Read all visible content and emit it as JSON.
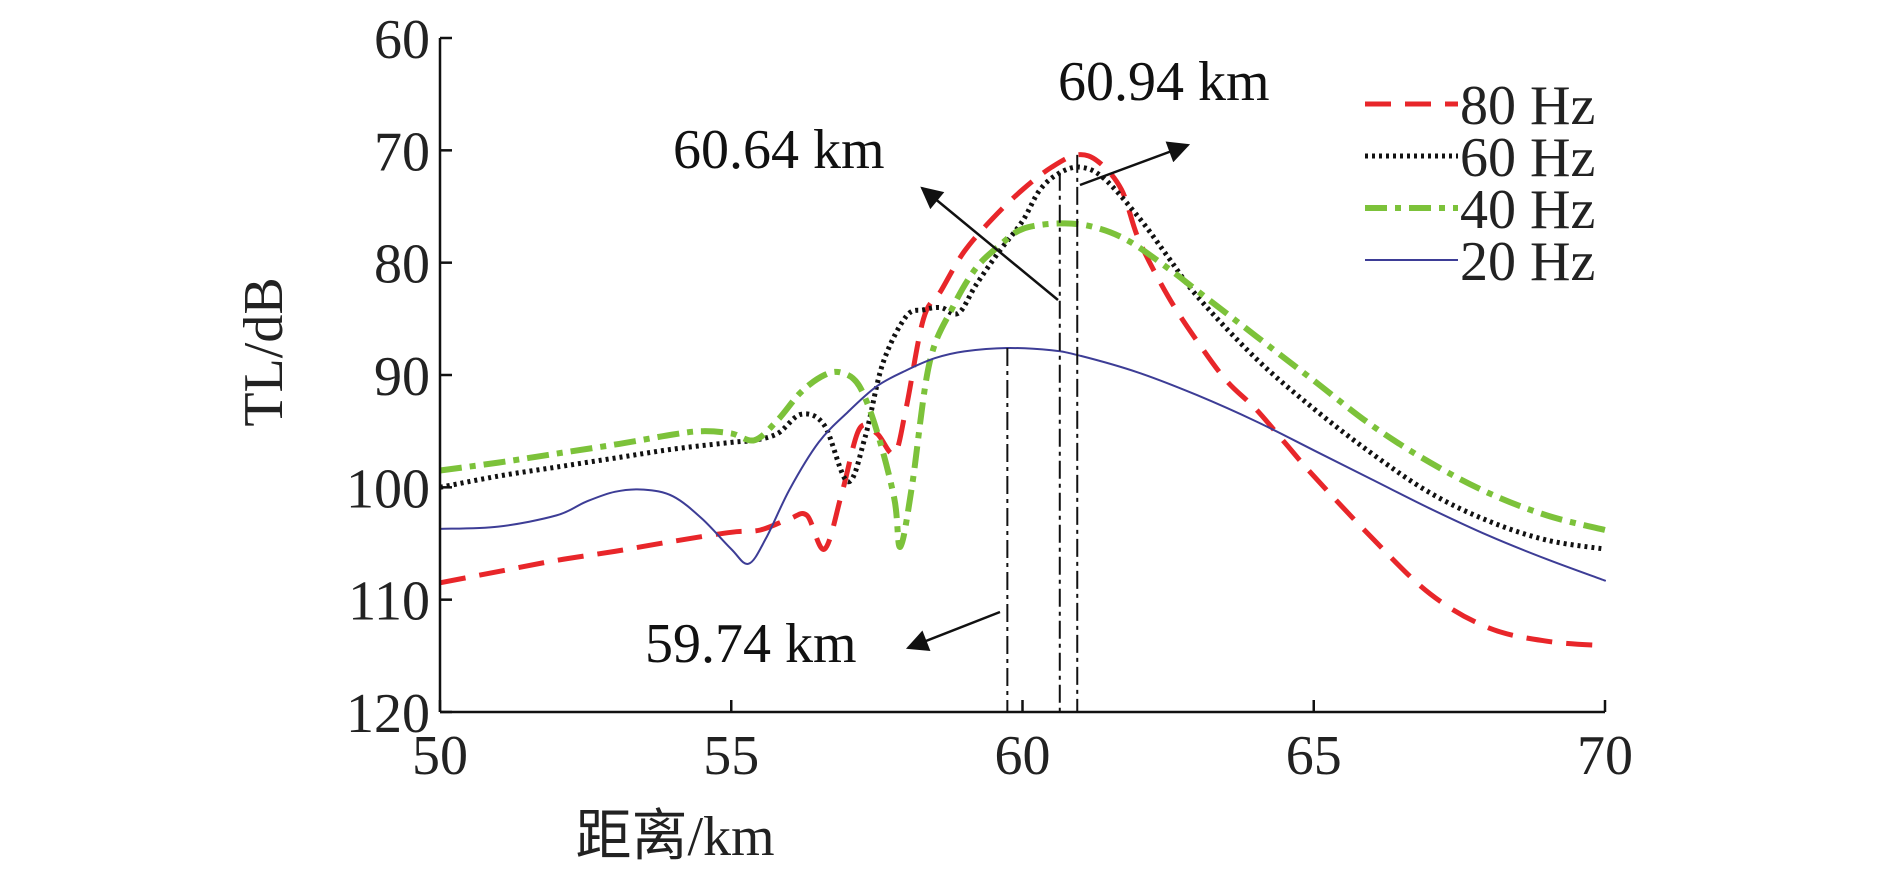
{
  "chart_data": {
    "type": "line",
    "xlabel": "距离/km",
    "ylabel": "TL/dB",
    "xlim": [
      50,
      70
    ],
    "ylim": [
      60,
      120
    ],
    "y_inverted": true,
    "x_ticks": [
      "50",
      "55",
      "60",
      "65",
      "70"
    ],
    "y_ticks": [
      "60",
      "70",
      "80",
      "90",
      "100",
      "110",
      "120"
    ],
    "legend_position": "top-right",
    "series": [
      {
        "name": "80 Hz",
        "color": "#e8262a",
        "style": "dashed",
        "x": [
          50,
          51,
          52,
          53,
          54,
          55,
          55.5,
          56,
          56.3,
          56.6,
          56.9,
          57.2,
          57.5,
          57.8,
          58,
          58.3,
          58.6,
          59,
          59.5,
          60,
          60.5,
          60.94,
          61.3,
          61.7,
          62,
          62.5,
          63,
          63.5,
          64,
          64.5,
          65,
          66,
          67,
          68,
          69,
          70
        ],
        "y": [
          108.5,
          107.5,
          106.5,
          105.7,
          104.8,
          104,
          103.8,
          102.8,
          102.5,
          105.5,
          100.5,
          94.8,
          95.2,
          97,
          93,
          85,
          82.5,
          79,
          76,
          73.5,
          71.5,
          70.4,
          71,
          73.5,
          78,
          83,
          87,
          90.5,
          93,
          96,
          99,
          104.5,
          109.5,
          112.5,
          113.7,
          114.1
        ]
      },
      {
        "name": "60 Hz",
        "color": "#111111",
        "style": "dotted",
        "x": [
          50,
          51,
          52,
          53,
          54,
          55,
          55.4,
          55.8,
          56.2,
          56.6,
          57,
          57.3,
          57.6,
          58,
          58.3,
          58.6,
          58.9,
          59.2,
          59.6,
          60,
          60.3,
          60.64,
          61,
          61.4,
          62,
          62.5,
          63,
          64,
          65,
          66,
          67,
          68,
          69,
          70
        ],
        "y": [
          100,
          99,
          98.2,
          97.4,
          96.6,
          96,
          95.8,
          95.2,
          93.5,
          94.5,
          99.5,
          95.5,
          89,
          84.8,
          84.2,
          84,
          84.5,
          82,
          79,
          76.3,
          73.5,
          72,
          71.5,
          72.5,
          76,
          79.5,
          83,
          88.5,
          93,
          97,
          100.5,
          103,
          104.7,
          105.5
        ]
      },
      {
        "name": "40 Hz",
        "color": "#7cc23a",
        "style": "dashdot",
        "x": [
          50,
          51,
          52,
          53,
          54,
          54.5,
          55,
          55.4,
          55.8,
          56.2,
          56.6,
          56.9,
          57.2,
          57.5,
          57.8,
          57.9,
          58.1,
          58.4,
          58.8,
          59.2,
          59.6,
          60,
          60.64,
          61.2,
          61.8,
          62.5,
          63,
          64,
          65,
          66,
          67,
          68,
          69,
          70
        ],
        "y": [
          98.5,
          97.8,
          97,
          96.2,
          95.3,
          95,
          95.2,
          95.8,
          94,
          91.5,
          90,
          89.8,
          91,
          95,
          101,
          105.3,
          100,
          89,
          84,
          80.5,
          78.5,
          77,
          76.5,
          76.8,
          78,
          80.5,
          82.5,
          86.5,
          90.5,
          94.5,
          97.8,
          100.5,
          102.5,
          103.8
        ]
      },
      {
        "name": "20 Hz",
        "color": "#3d3d96",
        "style": "solid",
        "x": [
          50,
          51,
          52,
          52.5,
          53,
          53.5,
          54,
          54.5,
          55,
          55.3,
          55.6,
          56,
          56.5,
          57,
          57.5,
          58,
          58.5,
          59,
          59.74,
          60.5,
          61,
          62,
          63,
          64,
          65,
          66,
          67,
          68,
          69,
          70
        ],
        "y": [
          103.7,
          103.5,
          102.5,
          101.3,
          100.4,
          100.2,
          100.8,
          102.8,
          105.5,
          106.8,
          104.5,
          100.2,
          96,
          93.3,
          91,
          89.6,
          88.5,
          87.9,
          87.6,
          87.8,
          88.3,
          89.8,
          91.8,
          94.1,
          96.7,
          99.3,
          101.9,
          104.3,
          106.4,
          108.3
        ]
      }
    ],
    "annotations": [
      {
        "text": "60.94 km",
        "x": 60.94
      },
      {
        "text": "60.64 km",
        "x": 60.64
      },
      {
        "text": "59.74 km",
        "x": 59.74
      }
    ]
  }
}
